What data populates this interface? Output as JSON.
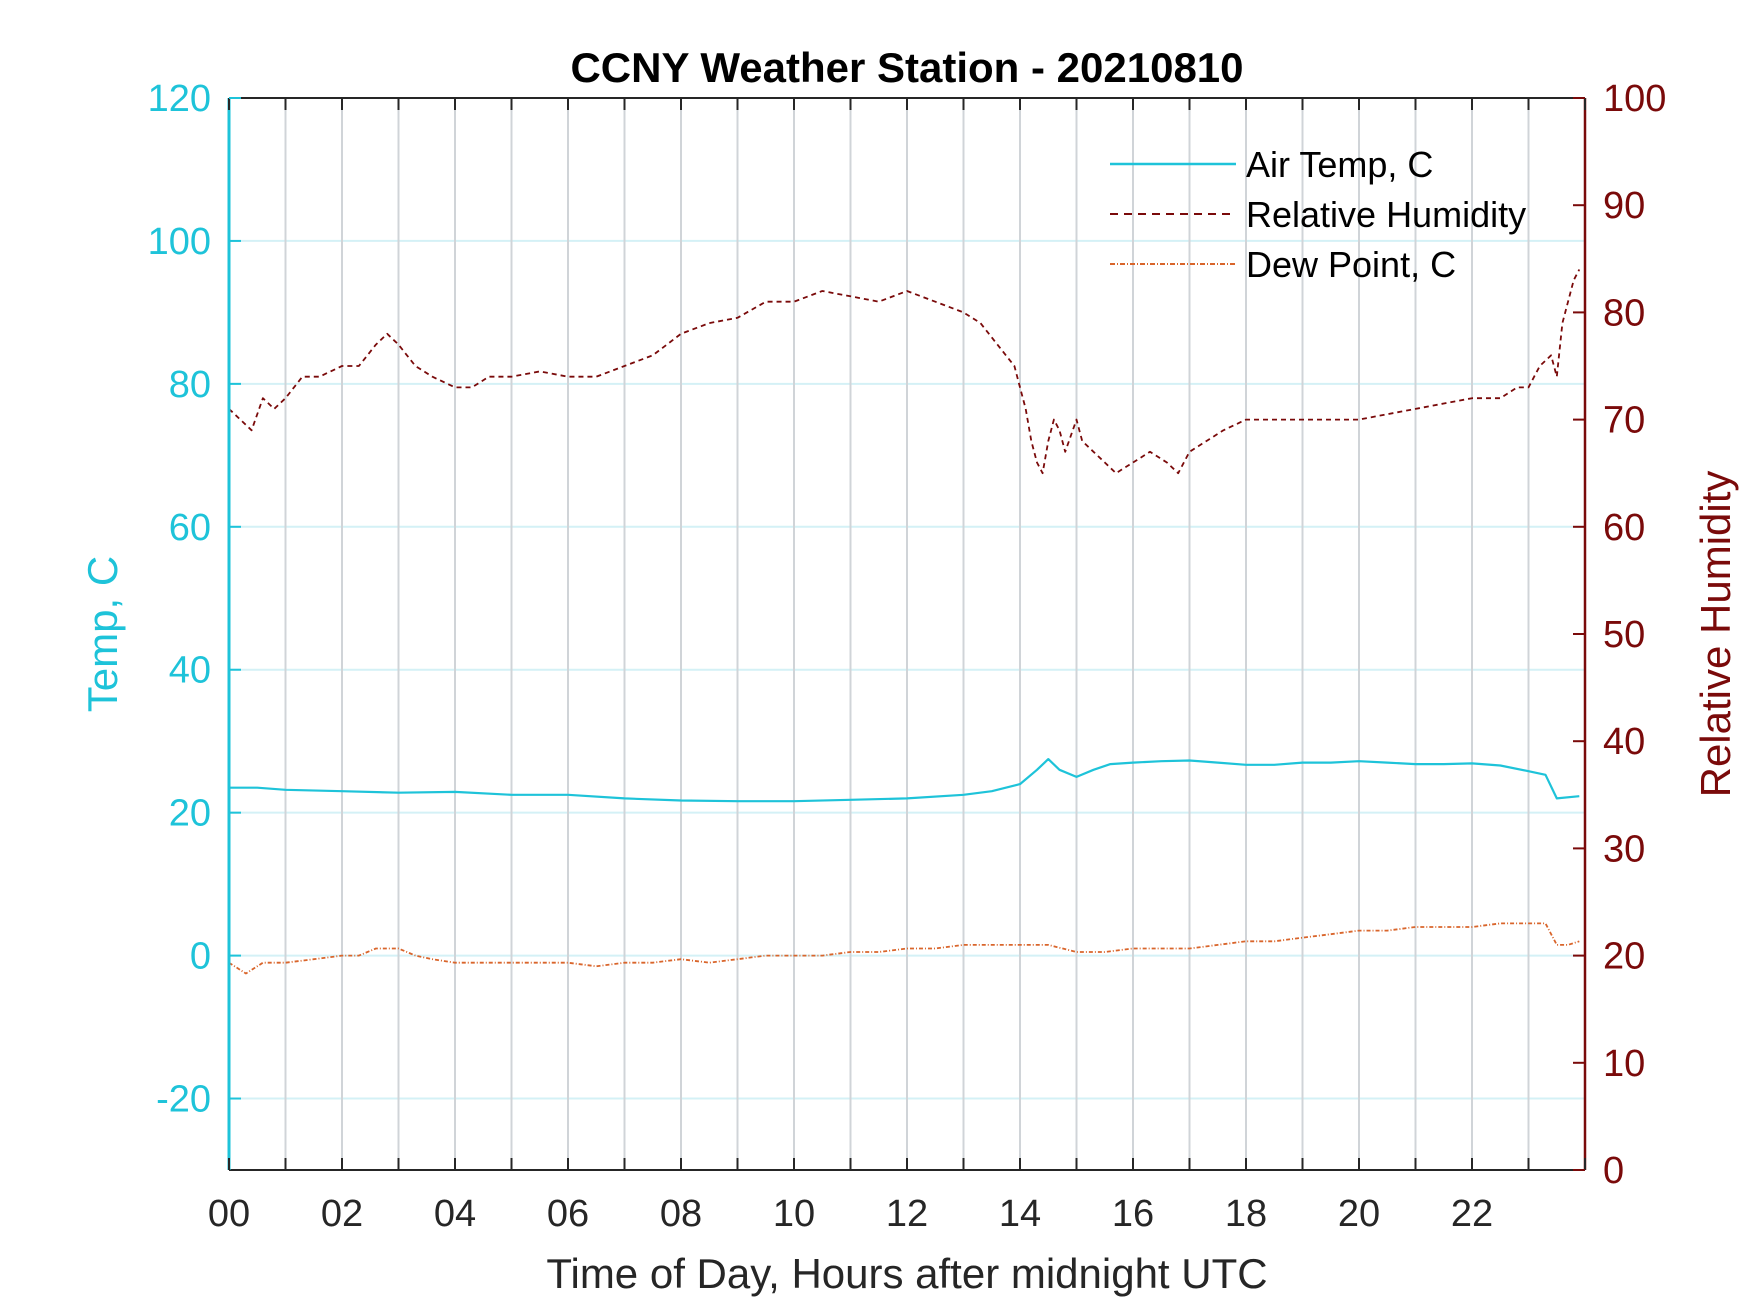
{
  "chart_data": {
    "type": "line",
    "title": "CCNY Weather Station - 20210810",
    "xlabel": "Time of Day, Hours after midnight UTC",
    "ylabel_left": "Temp, C",
    "ylabel_right": "Relative Humidity",
    "xlim": [
      0,
      24
    ],
    "ylim_left": [
      -30,
      120
    ],
    "ylim_right": [
      0,
      100
    ],
    "x_ticks": [
      0,
      2,
      4,
      6,
      8,
      10,
      12,
      14,
      16,
      18,
      20,
      22
    ],
    "x_tick_labels": [
      "00",
      "02",
      "04",
      "06",
      "08",
      "10",
      "12",
      "14",
      "16",
      "18",
      "20",
      "22"
    ],
    "y_left_ticks": [
      -20,
      0,
      20,
      40,
      60,
      80,
      100,
      120
    ],
    "y_left_tick_labels": [
      "-20",
      "0",
      "20",
      "40",
      "60",
      "80",
      "100",
      "120"
    ],
    "y_right_ticks": [
      0,
      10,
      20,
      30,
      40,
      50,
      60,
      70,
      80,
      90,
      100
    ],
    "y_right_tick_labels": [
      "0",
      "10",
      "20",
      "30",
      "40",
      "50",
      "60",
      "70",
      "80",
      "90",
      "100"
    ],
    "grid": true,
    "legend_position": "top-right",
    "colors": {
      "air_temp": "#1ec3d9",
      "rh": "#7a0a0a",
      "dew": "#d9652b",
      "grid_v": "#d0d4d8",
      "grid_h": "#d4f1f6"
    },
    "series": [
      {
        "name": "Air Temp, C",
        "axis": "left",
        "style": "solid",
        "x": [
          0,
          0.5,
          1,
          2,
          3,
          4,
          5,
          6,
          7,
          8,
          9,
          10,
          11,
          12,
          13,
          13.5,
          14,
          14.3,
          14.5,
          14.7,
          15,
          15.3,
          15.6,
          16,
          16.5,
          17,
          17.5,
          18,
          18.5,
          19,
          19.5,
          20,
          20.5,
          21,
          21.5,
          22,
          22.5,
          23,
          23.3,
          23.5,
          23.9
        ],
        "values": [
          23.5,
          23.5,
          23.2,
          23.0,
          22.8,
          22.9,
          22.5,
          22.5,
          22.0,
          21.7,
          21.6,
          21.6,
          21.8,
          22.0,
          22.5,
          23.0,
          24.0,
          26.0,
          27.5,
          26.0,
          25.0,
          26.0,
          26.8,
          27.0,
          27.2,
          27.3,
          27.0,
          26.7,
          26.7,
          27.0,
          27.0,
          27.2,
          27.0,
          26.8,
          26.8,
          26.9,
          26.6,
          25.8,
          25.3,
          22.0,
          22.3
        ]
      },
      {
        "name": "Relative Humidity",
        "axis": "right",
        "style": "dashed",
        "x": [
          0,
          0.2,
          0.4,
          0.6,
          0.8,
          1,
          1.3,
          1.6,
          2,
          2.3,
          2.6,
          2.8,
          3,
          3.3,
          3.6,
          4,
          4.3,
          4.6,
          5,
          5.5,
          6,
          6.5,
          7,
          7.5,
          8,
          8.5,
          9,
          9.5,
          10,
          10.5,
          11,
          11.5,
          12,
          12.5,
          13,
          13.3,
          13.6,
          13.9,
          14,
          14.1,
          14.2,
          14.3,
          14.4,
          14.5,
          14.6,
          14.7,
          14.8,
          15,
          15.1,
          15.3,
          15.5,
          15.7,
          16,
          16.3,
          16.6,
          16.8,
          17,
          17.3,
          17.6,
          18,
          18.5,
          19,
          19.5,
          20,
          20.5,
          21,
          21.5,
          22,
          22.5,
          22.8,
          23,
          23.2,
          23.4,
          23.5,
          23.6,
          23.8,
          23.9
        ],
        "values": [
          71,
          70,
          69,
          72,
          71,
          72,
          74,
          74,
          75,
          75,
          77,
          78,
          77,
          75,
          74,
          73,
          73,
          74,
          74,
          74.5,
          74,
          74,
          75,
          76,
          78,
          79,
          79.5,
          81,
          81,
          82,
          81.5,
          81,
          82,
          81,
          80,
          79,
          77,
          75,
          73,
          71,
          68,
          66,
          65,
          68,
          70,
          69,
          67,
          70,
          68,
          67,
          66,
          65,
          66,
          67,
          66,
          65,
          67,
          68,
          69,
          70,
          70,
          70,
          70,
          70,
          70.5,
          71,
          71.5,
          72,
          72,
          73,
          73,
          75,
          76,
          74,
          79,
          83,
          84
        ]
      },
      {
        "name": "Dew Point, C",
        "axis": "left",
        "style": "dashdot",
        "x": [
          0,
          0.3,
          0.6,
          1,
          1.5,
          2,
          2.3,
          2.6,
          3,
          3.3,
          3.6,
          4,
          4.5,
          5,
          5.5,
          6,
          6.5,
          7,
          7.5,
          8,
          8.5,
          9,
          9.5,
          10,
          10.5,
          11,
          11.5,
          12,
          12.5,
          13,
          13.5,
          14,
          14.5,
          15,
          15.5,
          16,
          16.5,
          17,
          17.5,
          18,
          18.5,
          19,
          19.5,
          20,
          20.5,
          21,
          21.5,
          22,
          22.5,
          23,
          23.3,
          23.5,
          23.7,
          23.9
        ],
        "values": [
          -1.0,
          -2.5,
          -1.0,
          -1.0,
          -0.5,
          0.0,
          0.0,
          1.0,
          1.0,
          0.0,
          -0.5,
          -1.0,
          -1.0,
          -1.0,
          -1.0,
          -1.0,
          -1.5,
          -1.0,
          -1.0,
          -0.5,
          -1.0,
          -0.5,
          0.0,
          0.0,
          0.0,
          0.5,
          0.5,
          1.0,
          1.0,
          1.5,
          1.5,
          1.5,
          1.5,
          0.5,
          0.5,
          1.0,
          1.0,
          1.0,
          1.5,
          2.0,
          2.0,
          2.5,
          3.0,
          3.5,
          3.5,
          4.0,
          4.0,
          4.0,
          4.5,
          4.5,
          4.5,
          1.5,
          1.5,
          2.0
        ]
      }
    ]
  }
}
